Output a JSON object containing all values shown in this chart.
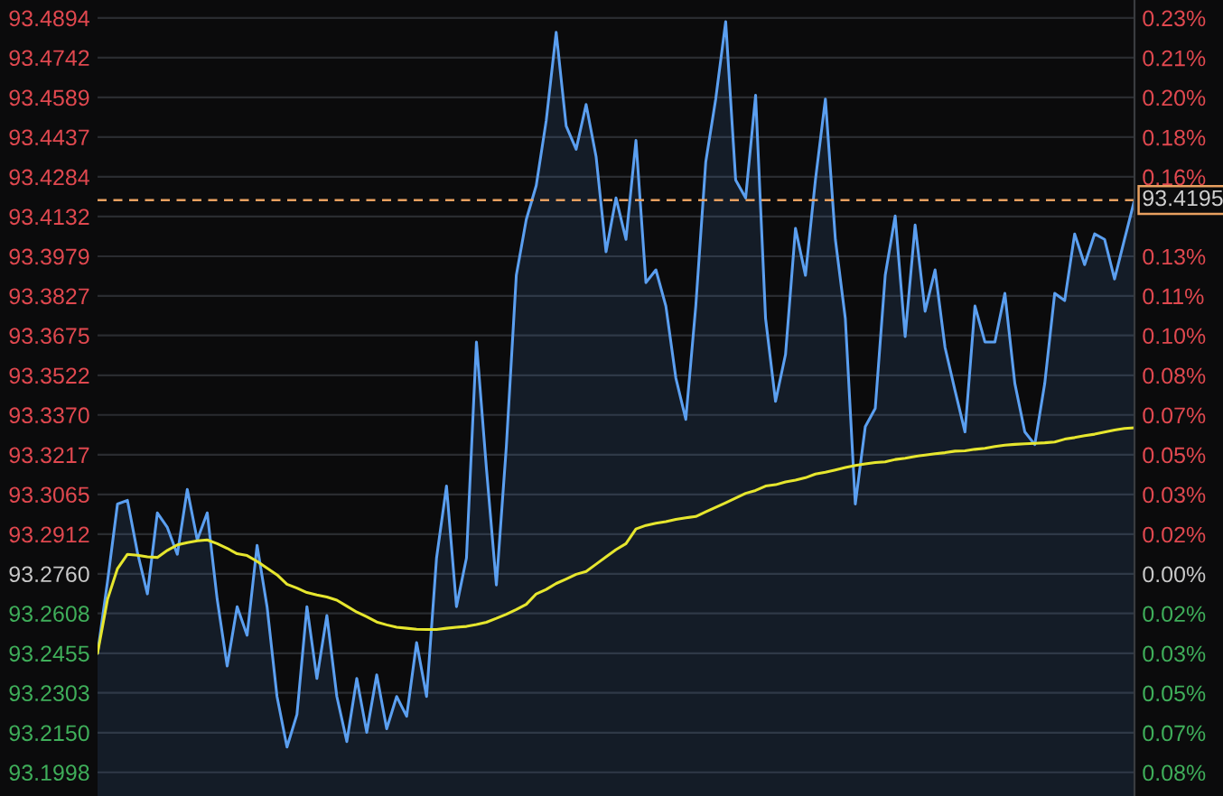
{
  "chart_data": {
    "type": "area",
    "categories": [
      null,
      null,
      null,
      null,
      null,
      null,
      null,
      null,
      null,
      null,
      null,
      null,
      null,
      null,
      null,
      null,
      null,
      null,
      null,
      null,
      null,
      null,
      null,
      null,
      null,
      null,
      null,
      null,
      null,
      null,
      null,
      null,
      null,
      null,
      null,
      null,
      null,
      null,
      null,
      null,
      null,
      null,
      null,
      null,
      null,
      null,
      null,
      null,
      null,
      null,
      null,
      null,
      null,
      null,
      null,
      null,
      null,
      null,
      null,
      null,
      null,
      null,
      null,
      null,
      null,
      null,
      null,
      null,
      null,
      null,
      null,
      null,
      null,
      null,
      null,
      null,
      null,
      null,
      null,
      null,
      null,
      null,
      null,
      null,
      null,
      null,
      null,
      null,
      null,
      null,
      null,
      null,
      null,
      null,
      null,
      null,
      null,
      null,
      null,
      null,
      null,
      null,
      null,
      null,
      null
    ],
    "ylim": [
      93.1907,
      93.4963
    ],
    "yticks": [
      93.4894,
      93.4742,
      93.4589,
      93.4437,
      93.4284,
      93.4132,
      93.3979,
      93.3827,
      93.3675,
      93.3522,
      {
        "value": 93.337,
        "label": "93.3370"
      },
      93.3217,
      93.3065,
      93.2912,
      {
        "value": 93.276,
        "label": "93.2760"
      },
      93.2608,
      93.2455,
      93.2303,
      {
        "value": 93.215,
        "label": "93.2150"
      },
      93.1998
    ],
    "y2lim": [
      -0.0914,
      0.2362
    ],
    "y2ticks": [
      {
        "value": 0.2288,
        "label": "0.23%"
      },
      {
        "value": 0.2124,
        "label": "0.21%"
      },
      {
        "value": 0.1961,
        "label": "0.20%"
      },
      {
        "value": 0.1797,
        "label": "0.18%"
      },
      {
        "value": 0.1634,
        "label": "0.16%"
      },
      {
        "value": 0.1471,
        "label": null
      },
      {
        "value": 0.1307,
        "label": "0.13%"
      },
      {
        "value": 0.1144,
        "label": "0.11%"
      },
      {
        "value": 0.0981,
        "label": "0.10%"
      },
      {
        "value": 0.0817,
        "label": "0.08%"
      },
      {
        "value": 0.0654,
        "label": "0.07%"
      },
      {
        "value": 0.049,
        "label": "0.05%"
      },
      {
        "value": 0.0327,
        "label": "0.03%"
      },
      {
        "value": 0.0163,
        "label": "0.02%"
      },
      {
        "value": 0,
        "label": "0.00%"
      },
      {
        "value": -0.0163,
        "label": "0.02%"
      },
      {
        "value": -0.0327,
        "label": "0.03%"
      },
      {
        "value": -0.049,
        "label": "0.05%"
      },
      {
        "value": -0.0654,
        "label": "0.07%"
      },
      {
        "value": -0.0817,
        "label": "0.08%"
      }
    ],
    "tick_labels": "y",
    "grid": "y",
    "ref_lines": [
      {
        "axis": "y",
        "value": 93.4195,
        "label": "93.4195",
        "color": "#e8a060",
        "line_style": "dashed"
      }
    ],
    "series": [
      {
        "color": "#5b9ff0",
        "values": [
          93.2455,
          93.2731,
          93.3028,
          93.3042,
          93.2842,
          93.2683,
          93.2994,
          93.2938,
          93.2835,
          93.3084,
          93.289,
          93.2994,
          93.2662,
          93.2406,
          93.2634,
          93.2524,
          93.2869,
          93.2634,
          93.2289,
          93.2095,
          93.222,
          93.2634,
          93.2358,
          93.26,
          93.2289,
          93.2116,
          93.2358,
          93.2151,
          93.2372,
          93.2165,
          93.2289,
          93.2213,
          93.2496,
          93.2289,
          93.2821,
          93.3097,
          93.2634,
          93.2821,
          93.365,
          93.3166,
          93.2717,
          93.3249,
          93.3906,
          93.412,
          93.4251,
          93.45,
          93.4839,
          93.4479,
          93.439,
          93.4562,
          93.4362,
          93.3996,
          93.4203,
          93.4044,
          93.4424,
          93.3878,
          93.3927,
          93.3788,
          93.3512,
          93.3353,
          93.3788,
          93.4341,
          93.4583,
          93.488,
          93.4272,
          93.4203,
          93.4597,
          93.374,
          93.3422,
          93.3602,
          93.4086,
          93.3906,
          93.4272,
          93.4583,
          93.4044,
          93.374,
          93.3028,
          93.3325,
          93.3395,
          93.3906,
          93.4134,
          93.3671,
          93.4099,
          93.3768,
          93.3927,
          93.3629,
          93.3464,
          93.3305,
          93.3788,
          93.365,
          93.365,
          93.3837,
          93.3491,
          93.3305,
          93.3256,
          93.3491,
          93.3837,
          93.3809,
          93.4065,
          93.3947,
          93.4065,
          93.4044,
          93.3892,
          93.4044,
          93.4195
        ]
      },
      {
        "type": "line",
        "color": "#e6e62e",
        "values": [
          93.2455,
          93.2662,
          93.278,
          93.2835,
          93.2831,
          93.2825,
          93.2823,
          93.285,
          93.2871,
          93.288,
          93.2887,
          93.289,
          93.2876,
          93.2858,
          93.2837,
          93.283,
          93.2808,
          93.2782,
          93.2756,
          93.272,
          93.2705,
          93.2688,
          93.2679,
          93.2671,
          93.2659,
          93.2636,
          93.2613,
          93.2595,
          93.2575,
          93.2564,
          93.2555,
          93.2551,
          93.2547,
          93.2546,
          93.2546,
          93.2551,
          93.2555,
          93.2558,
          93.2565,
          93.2574,
          93.2589,
          93.2605,
          93.2623,
          93.2643,
          93.2683,
          93.27,
          93.2723,
          93.274,
          93.2758,
          93.2769,
          93.2797,
          93.2825,
          93.2853,
          93.2876,
          93.2932,
          93.2946,
          93.2954,
          93.296,
          93.2969,
          93.2975,
          93.298,
          93.2998,
          93.3015,
          93.3033,
          93.3051,
          93.3069,
          93.308,
          93.3097,
          93.3102,
          93.3113,
          93.312,
          93.3129,
          93.3143,
          93.315,
          93.3159,
          93.3168,
          93.3176,
          93.3182,
          93.3187,
          93.319,
          93.3199,
          93.3204,
          93.3211,
          93.3216,
          93.3221,
          93.3225,
          93.3231,
          93.3232,
          93.3238,
          93.3242,
          93.3249,
          93.3254,
          93.3257,
          93.3259,
          93.3261,
          93.3263,
          93.3266,
          93.3277,
          93.3283,
          93.329,
          93.3296,
          93.3304,
          93.3312,
          93.3318,
          93.3321
        ]
      }
    ]
  }
}
